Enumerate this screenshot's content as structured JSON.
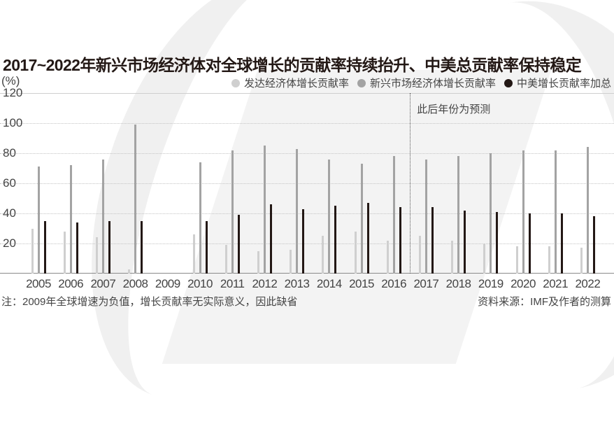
{
  "header": {
    "title": "2017~2022年新兴市场经济体对全球增长的贡献率持续抬升、中美总贡献率保持稳定",
    "unit": "(%)"
  },
  "legend": [
    {
      "label": "发达经济体增长贡献率",
      "color": "#cfcfcf"
    },
    {
      "label": "新兴市场经济体增长贡献率",
      "color": "#a3a3a3"
    },
    {
      "label": "中美增长贡献率加总",
      "color": "#231815"
    }
  ],
  "forecast_label": "此后年份为预测",
  "footer": {
    "note": "注：2009年全球增速为负值，增长贡献率无实际意义，因此缺省",
    "source": "资料来源：IMF及作者的测算"
  },
  "chart_data": {
    "type": "bar",
    "title": "2017~2022年新兴市场经济体对全球增长的贡献率持续抬升、中美总贡献率保持稳定",
    "xlabel": "",
    "ylabel": "(%)",
    "ylim": [
      0,
      120
    ],
    "yticks": [
      20,
      40,
      60,
      80,
      100,
      120
    ],
    "grid": true,
    "legend_position": "top-right",
    "categories": [
      "2005",
      "2006",
      "2007",
      "2008",
      "2009",
      "2010",
      "2011",
      "2012",
      "2013",
      "2014",
      "2015",
      "2016",
      "2017",
      "2018",
      "2019",
      "2020",
      "2021",
      "2022"
    ],
    "series": [
      {
        "name": "发达经济体增长贡献率",
        "color": "#cfcfcf",
        "values": [
          30,
          28,
          24,
          3,
          null,
          26,
          19,
          15,
          16,
          25,
          28,
          22,
          25,
          22,
          20,
          18,
          18,
          17
        ]
      },
      {
        "name": "新兴市场经济体增长贡献率",
        "color": "#a3a3a3",
        "values": [
          71,
          72,
          76,
          99,
          null,
          74,
          82,
          85,
          83,
          76,
          73,
          78,
          76,
          78,
          80,
          82,
          82,
          84
        ]
      },
      {
        "name": "中美增长贡献率加总",
        "color": "#231815",
        "values": [
          35,
          34,
          35,
          35,
          null,
          35,
          39,
          46,
          43,
          45,
          47,
          44,
          44,
          42,
          41,
          40,
          40,
          38
        ]
      }
    ],
    "annotations": [
      {
        "text": "此后年份为预测",
        "position": "between 2016 and 2017",
        "style": "dotted vertical line"
      },
      {
        "text": "注：2009年全球增速为负值，增长贡献率无实际意义，因此缺省"
      },
      {
        "text": "资料来源：IMF及作者的测算"
      }
    ],
    "forecast_start": "2017"
  }
}
